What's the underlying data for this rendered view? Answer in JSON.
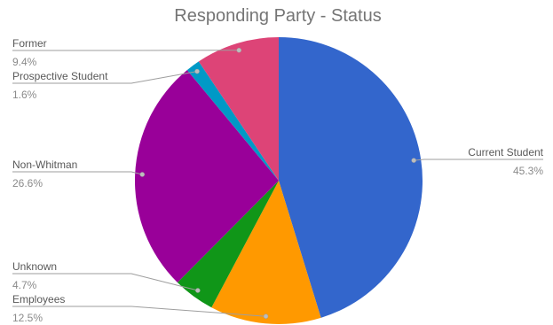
{
  "chart_data": {
    "type": "pie",
    "title": "Responding Party - Status",
    "slices": [
      {
        "label": "Current Student",
        "value": 45.3,
        "value_label": "45.3%",
        "color": "#3366cc"
      },
      {
        "label": "Employees",
        "value": 12.5,
        "value_label": "12.5%",
        "color": "#ff9900"
      },
      {
        "label": "Unknown",
        "value": 4.7,
        "value_label": "4.7%",
        "color": "#109618"
      },
      {
        "label": "Non-Whitman",
        "value": 26.6,
        "value_label": "26.6%",
        "color": "#990099"
      },
      {
        "label": "Prospective Student",
        "value": 1.6,
        "value_label": "1.6%",
        "color": "#0099c6"
      },
      {
        "label": "Former",
        "value": 9.4,
        "value_label": "9.4%",
        "color": "#dd4477"
      }
    ],
    "start_angle_deg": 0,
    "direction": "clockwise",
    "legend": "none (labels beside slices)"
  }
}
